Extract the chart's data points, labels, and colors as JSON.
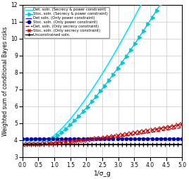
{
  "title": "",
  "xlabel": "1/σ_g",
  "ylabel": "Weighted sum of conditional Bayes risks",
  "xlim": [
    0,
    5
  ],
  "ylim": [
    3,
    12
  ],
  "yticks": [
    3,
    4,
    5,
    6,
    7,
    8,
    9,
    10,
    11,
    12
  ],
  "xticks": [
    0,
    0.5,
    1.0,
    1.5,
    2.0,
    2.5,
    3.0,
    3.5,
    4.0,
    4.5,
    5.0
  ],
  "background_color": "#ffffff",
  "grid_color": "#c8c8c8",
  "det_sp_color": "#00e8ff",
  "stoc_sp_color": "#00c8d8",
  "det_p_color": "#2222cc",
  "stoc_p_color": "#0000bb",
  "det_s_color": "#cc0000",
  "stoc_s_color": "#cc0000",
  "uncon_color": "#000000"
}
